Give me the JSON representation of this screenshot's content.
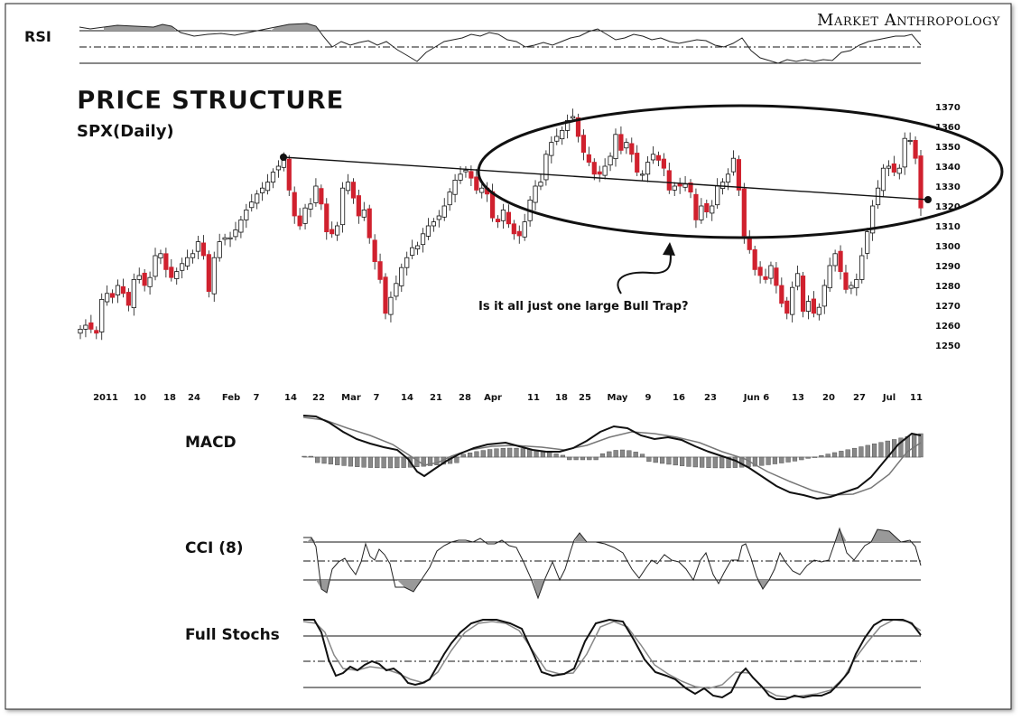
{
  "brand": "Market Anthropology",
  "title": "PRICE STRUCTURE",
  "subtitle": "SPX(Daily)",
  "annotation": "Is it all just one large Bull Trap?",
  "panels": {
    "rsi": "RSI",
    "macd": "MACD",
    "cci": "CCI (8)",
    "stoch": "Full Stochs"
  },
  "colors": {
    "up_candle": "#ffffff",
    "down_candle": "#d0212e",
    "line": "#111111",
    "histogram": "#888888"
  },
  "chart_data": {
    "type": "candlestick",
    "title": "PRICE STRUCTURE",
    "subtitle": "SPX(Daily)",
    "y_ticks": [
      1250,
      1260,
      1270,
      1280,
      1290,
      1300,
      1310,
      1320,
      1330,
      1340,
      1350,
      1360,
      1370
    ],
    "ylim": [
      1250,
      1370
    ],
    "x_tick_labels": [
      "2011",
      "10",
      "18",
      "24",
      "Feb",
      "7",
      "14",
      "22",
      "Mar",
      "7",
      "14",
      "21",
      "28",
      "Apr",
      "11",
      "18",
      "25",
      "May",
      "9",
      "16",
      "23",
      "Jun 6",
      "13",
      "20",
      "27",
      "Jul",
      "11"
    ],
    "close": [
      1258,
      1260,
      1258,
      1256,
      1273,
      1276,
      1274,
      1280,
      1276,
      1270,
      1283,
      1285,
      1280,
      1284,
      1295,
      1296,
      1288,
      1284,
      1287,
      1291,
      1294,
      1296,
      1302,
      1295,
      1277,
      1294,
      1302,
      1304,
      1304,
      1308,
      1313,
      1318,
      1322,
      1326,
      1329,
      1332,
      1337,
      1340,
      1343,
      1328,
      1315,
      1310,
      1319,
      1321,
      1330,
      1321,
      1307,
      1306,
      1310,
      1329,
      1332,
      1324,
      1315,
      1318,
      1304,
      1292,
      1283,
      1266,
      1274,
      1281,
      1289,
      1294,
      1299,
      1300,
      1306,
      1310,
      1312,
      1315,
      1320,
      1327,
      1333,
      1336,
      1338,
      1334,
      1328,
      1329,
      1326,
      1314,
      1312,
      1318,
      1311,
      1306,
      1305,
      1312,
      1323,
      1330,
      1332,
      1346,
      1352,
      1355,
      1358,
      1363,
      1365,
      1355,
      1347,
      1342,
      1336,
      1336,
      1340,
      1345,
      1356,
      1348,
      1352,
      1346,
      1337,
      1336,
      1342,
      1346,
      1343,
      1339,
      1328,
      1330,
      1330,
      1331,
      1327,
      1313,
      1320,
      1317,
      1320,
      1330,
      1332,
      1336,
      1344,
      1328,
      1305,
      1298,
      1288,
      1285,
      1283,
      1290,
      1280,
      1271,
      1266,
      1279,
      1286,
      1267,
      1272,
      1266,
      1269,
      1280,
      1290,
      1296,
      1287,
      1278,
      1280,
      1283,
      1295,
      1307,
      1320,
      1329,
      1339,
      1340,
      1337,
      1339,
      1354,
      1353,
      1344,
      1319
    ]
  }
}
